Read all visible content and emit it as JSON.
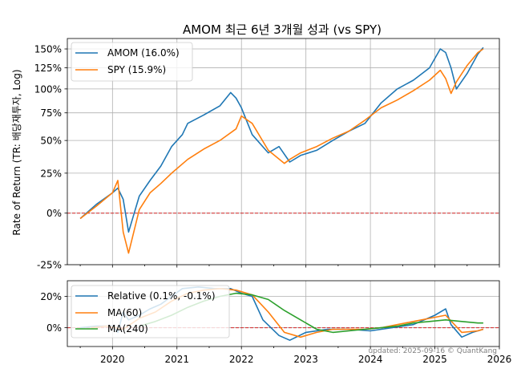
{
  "chart_data": [
    {
      "type": "line",
      "title": "AMOM 최근 6년 3개월 성과 (vs SPY)",
      "ylabel": "Rate of Return (TR: 배당재투자, Log)",
      "y_scale": "log(1+r)",
      "ylim": [
        -25,
        165
      ],
      "xlim": [
        2019.3,
        2026.0
      ],
      "y_ticks": [
        -25,
        0,
        25,
        50,
        75,
        100,
        125,
        150
      ],
      "y_tick_labels": [
        "-25%",
        "0%",
        "25%",
        "50%",
        "75%",
        "100%",
        "125%",
        "150%"
      ],
      "x_ticks": [
        2020,
        2021,
        2022,
        2023,
        2024,
        2025,
        2026
      ],
      "x_tick_labels": [
        "2020",
        "2021",
        "2022",
        "2023",
        "2024",
        "2025",
        "2026"
      ],
      "grid": true,
      "legend_position": "top-left",
      "reference_line": {
        "y": 0,
        "color": "#d62728",
        "style": "dashed"
      },
      "series": [
        {
          "name": "AMOM (16.0%)",
          "color": "#1f77b4",
          "x": [
            "2019-07",
            "2019-10",
            "2020-01",
            "2020-02",
            "2020-03",
            "2020-04",
            "2020-06",
            "2020-08",
            "2020-10",
            "2020-12",
            "2021-02",
            "2021-03",
            "2021-06",
            "2021-09",
            "2021-11",
            "2021-12",
            "2022-01",
            "2022-03",
            "2022-06",
            "2022-08",
            "2022-10",
            "2022-12",
            "2023-03",
            "2023-06",
            "2023-09",
            "2023-12",
            "2024-03",
            "2024-06",
            "2024-09",
            "2024-12",
            "2025-02",
            "2025-03",
            "2025-04",
            "2025-05",
            "2025-07",
            "2025-09",
            "2025-10"
          ],
          "values": [
            -3,
            5,
            12,
            15,
            8,
            -10,
            10,
            20,
            30,
            45,
            55,
            65,
            73,
            82,
            96,
            90,
            80,
            55,
            40,
            45,
            33,
            38,
            42,
            50,
            58,
            65,
            85,
            100,
            110,
            125,
            150,
            145,
            125,
            100,
            118,
            143,
            152
          ]
        },
        {
          "name": "SPY (15.9%)",
          "color": "#ff7f0e",
          "x": [
            "2019-07",
            "2019-10",
            "2020-01",
            "2020-02",
            "2020-03",
            "2020-04",
            "2020-06",
            "2020-08",
            "2020-10",
            "2020-12",
            "2021-03",
            "2021-06",
            "2021-09",
            "2021-12",
            "2022-01",
            "2022-03",
            "2022-06",
            "2022-09",
            "2022-10",
            "2022-12",
            "2023-03",
            "2023-06",
            "2023-09",
            "2023-12",
            "2024-03",
            "2024-06",
            "2024-09",
            "2024-12",
            "2025-02",
            "2025-03",
            "2025-04",
            "2025-05",
            "2025-07",
            "2025-09",
            "2025-10"
          ],
          "values": [
            -3,
            4,
            12,
            20,
            -10,
            -20,
            2,
            12,
            18,
            25,
            35,
            43,
            50,
            60,
            72,
            65,
            42,
            32,
            35,
            40,
            45,
            52,
            58,
            68,
            80,
            88,
            98,
            110,
            122,
            112,
            95,
            108,
            128,
            145,
            150
          ]
        }
      ]
    },
    {
      "type": "line",
      "ylim": [
        -12,
        30
      ],
      "y_ticks": [
        0,
        20
      ],
      "y_tick_labels": [
        "0%",
        "20%"
      ],
      "grid": true,
      "legend_position": "top-left",
      "reference_line": {
        "y": 0,
        "color": "#d62728",
        "style": "dashed"
      },
      "series": [
        {
          "name": "Relative (0.1%, -0.1%)",
          "color": "#1f77b4",
          "x": [
            "2019-07",
            "2019-10",
            "2020-01",
            "2020-02",
            "2020-03",
            "2020-04",
            "2020-06",
            "2020-08",
            "2020-10",
            "2020-12",
            "2021-02",
            "2021-05",
            "2021-08",
            "2021-11",
            "2022-01",
            "2022-03",
            "2022-05",
            "2022-08",
            "2022-10",
            "2023-01",
            "2023-05",
            "2023-09",
            "2024-01",
            "2024-05",
            "2024-09",
            "2025-01",
            "2025-03",
            "2025-04",
            "2025-06",
            "2025-08",
            "2025-10"
          ],
          "values": [
            0,
            1,
            1,
            -3,
            10,
            5,
            8,
            12,
            15,
            20,
            25,
            26,
            25,
            25,
            22,
            20,
            5,
            -5,
            -8,
            -3,
            -1,
            -1,
            -2,
            0,
            2,
            8,
            12,
            2,
            -6,
            -3,
            -1
          ]
        },
        {
          "name": "MA(60)",
          "color": "#ff7f0e",
          "x": [
            "2019-09",
            "2019-12",
            "2020-03",
            "2020-06",
            "2020-09",
            "2020-12",
            "2021-03",
            "2021-06",
            "2021-09",
            "2021-12",
            "2022-03",
            "2022-06",
            "2022-09",
            "2022-12",
            "2023-03",
            "2023-06",
            "2023-09",
            "2023-12",
            "2024-03",
            "2024-06",
            "2024-09",
            "2024-12",
            "2025-03",
            "2025-06",
            "2025-09",
            "2025-10"
          ],
          "values": [
            0,
            1,
            -1,
            6,
            10,
            17,
            22,
            24,
            25,
            24,
            21,
            10,
            -3,
            -6,
            -3,
            -1,
            -1,
            -1,
            0,
            2,
            4,
            6,
            8,
            -3,
            -2,
            -1
          ]
        },
        {
          "name": "MA(240)",
          "color": "#2ca02c",
          "x": [
            "2020-06",
            "2020-09",
            "2020-12",
            "2021-03",
            "2021-06",
            "2021-09",
            "2021-12",
            "2022-03",
            "2022-06",
            "2022-09",
            "2022-12",
            "2023-03",
            "2023-06",
            "2023-09",
            "2023-12",
            "2024-03",
            "2024-06",
            "2024-09",
            "2024-12",
            "2025-03",
            "2025-06",
            "2025-09",
            "2025-10"
          ],
          "values": [
            1,
            4,
            8,
            13,
            17,
            20,
            22,
            21,
            18,
            11,
            5,
            -1,
            -3,
            -2,
            -1,
            0,
            1,
            3,
            4,
            5,
            4,
            3,
            3
          ]
        }
      ]
    }
  ],
  "footer": "updated: 2025-09-16 © QuantKang"
}
